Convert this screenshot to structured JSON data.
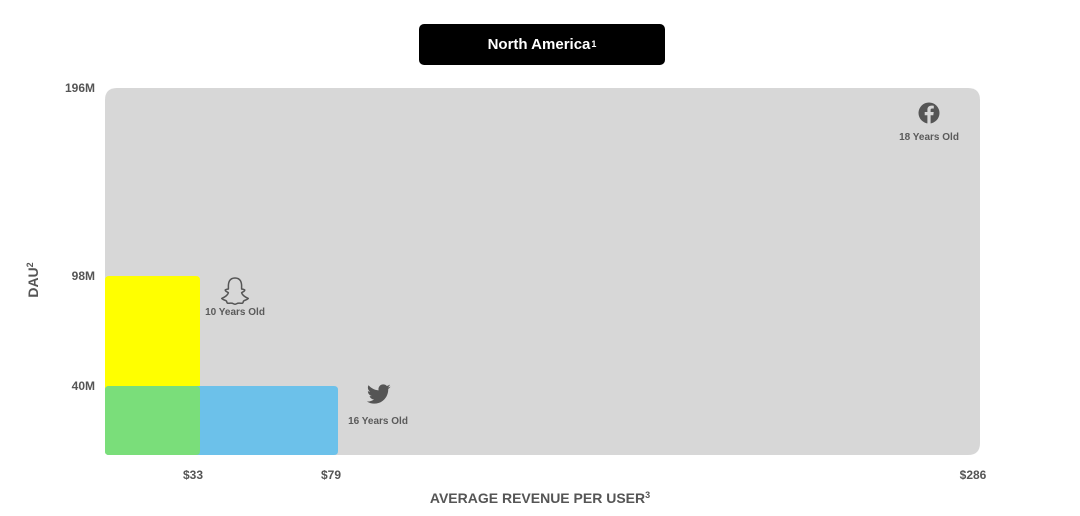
{
  "chart_data": {
    "type": "area",
    "title": "North America",
    "title_note": "1",
    "xlabel": "AVERAGE REVENUE PER USER",
    "xlabel_note": "3",
    "ylabel": "DAU",
    "ylabel_note": "2",
    "y_ticks": [
      "196M",
      "98M",
      "40M"
    ],
    "x_ticks": [
      "$33",
      "$79",
      "$286"
    ],
    "grid": false,
    "series": [
      {
        "name": "Facebook",
        "arpu": 286,
        "dau": 196,
        "age_label": "18 Years Old",
        "color": "#d7d7d7",
        "icon": "facebook-icon"
      },
      {
        "name": "Snapchat",
        "arpu": 33,
        "dau": 98,
        "age_label": "10 Years Old",
        "color": "#ffff00",
        "icon": "snapchat-ghost-icon"
      },
      {
        "name": "Twitter",
        "arpu": 79,
        "dau": 40,
        "age_label": "16 Years Old",
        "color": "#6cc1ea",
        "icon": "twitter-bird-icon"
      }
    ],
    "overlap_color": "#7ade7a",
    "icon_color": "#555555"
  }
}
